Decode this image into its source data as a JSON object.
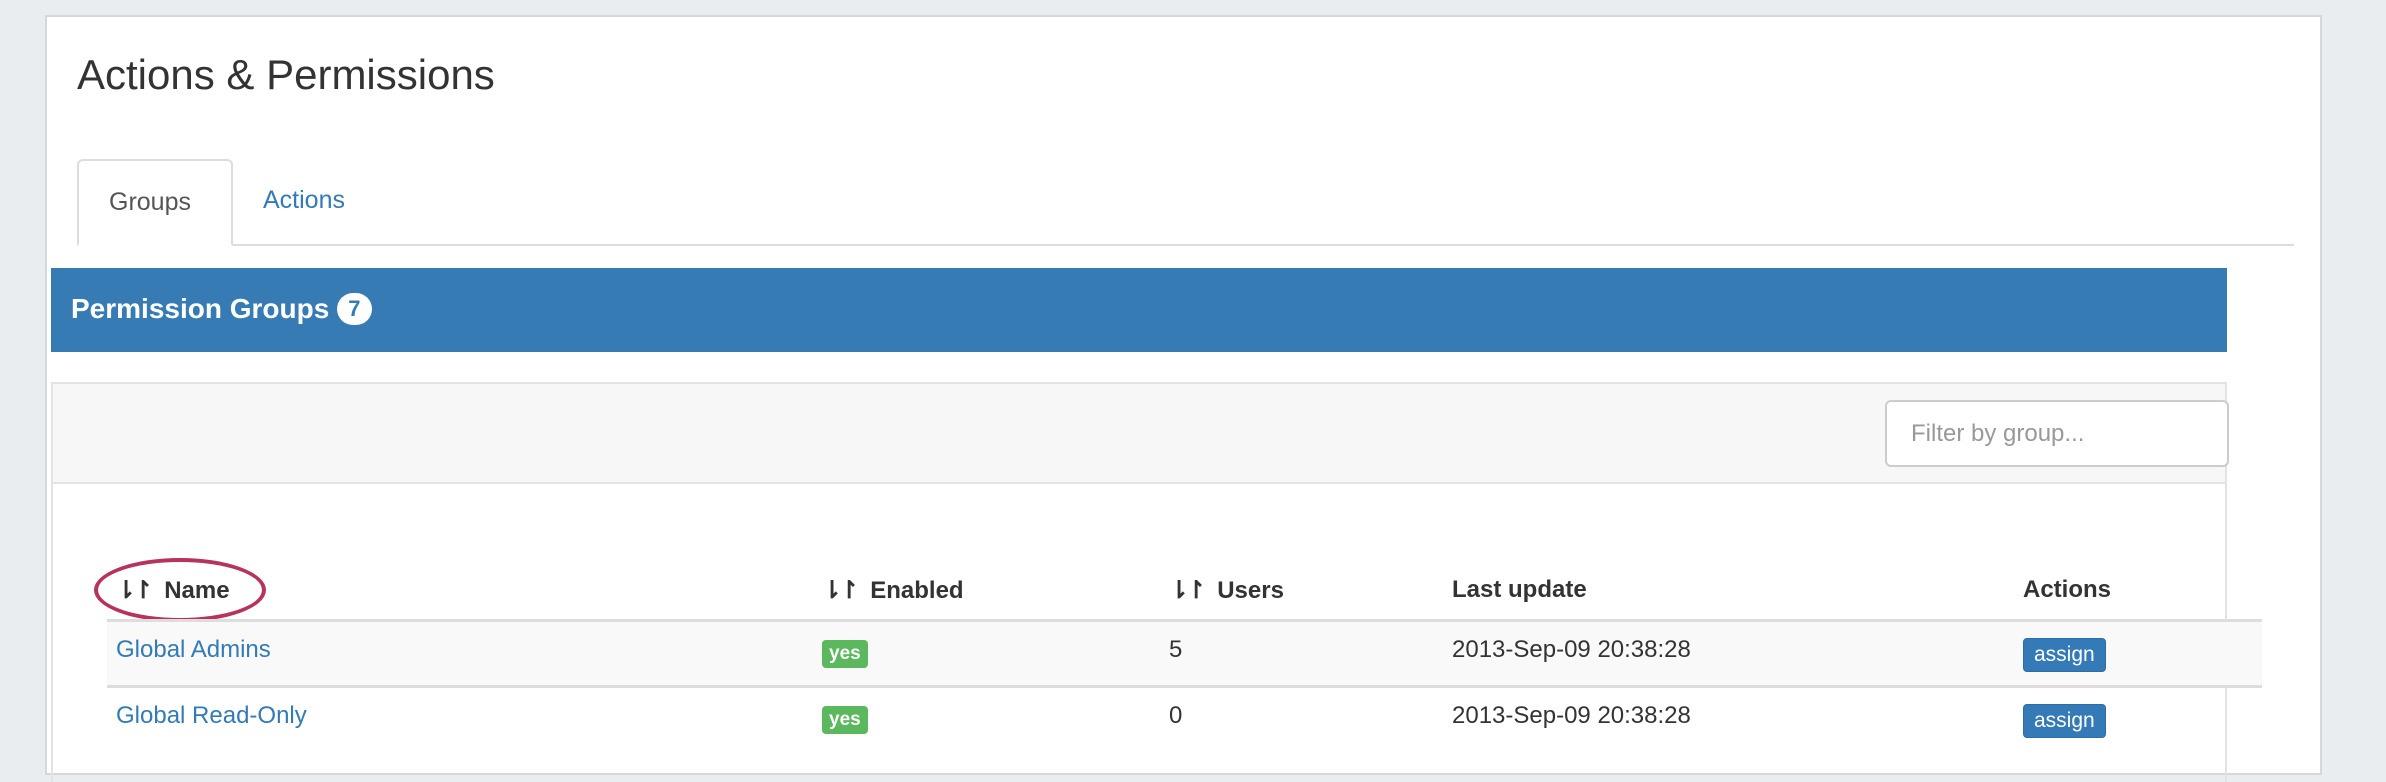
{
  "page": {
    "title": "Actions & Permissions"
  },
  "tabs": [
    {
      "label": "Groups",
      "active": true
    },
    {
      "label": "Actions",
      "active": false
    }
  ],
  "panel": {
    "title": "Permission Groups",
    "count": "7"
  },
  "filter": {
    "placeholder": "Filter by group...",
    "value": ""
  },
  "table": {
    "columns": [
      {
        "label": "Name",
        "sortable": true
      },
      {
        "label": "Enabled",
        "sortable": true
      },
      {
        "label": "Users",
        "sortable": true
      },
      {
        "label": "Last update",
        "sortable": false
      },
      {
        "label": "Actions",
        "sortable": false
      }
    ],
    "sort_icon": "⇂↾",
    "rows": [
      {
        "name": "Global Admins",
        "enabled": "yes",
        "users": "5",
        "last_update": "2013-Sep-09 20:38:28",
        "action": "assign"
      },
      {
        "name": "Global Read-Only",
        "enabled": "yes",
        "users": "0",
        "last_update": "2013-Sep-09 20:38:28",
        "action": "assign"
      }
    ]
  },
  "colors": {
    "primary": "#377bb5",
    "success": "#5cb85c",
    "highlight": "#b8325f"
  }
}
